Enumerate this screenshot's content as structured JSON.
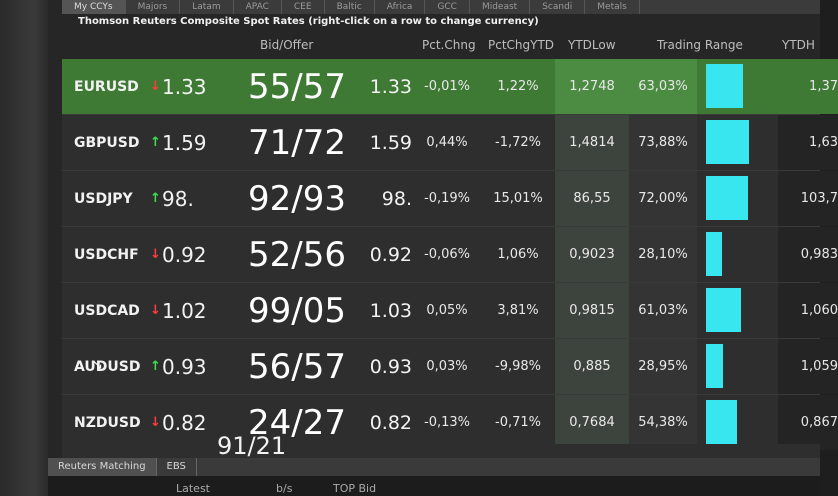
{
  "region_tabs": [
    "My CCYs",
    "Majors",
    "Latam",
    "APAC",
    "CEE",
    "Baltic",
    "Africa",
    "GCC",
    "Mideast",
    "Scandi",
    "Metals"
  ],
  "panel_title": "Thomson Reuters Composite Spot Rates (right-click on a row to change currency)",
  "headers": {
    "bid_offer": "Bid/Offer",
    "pct_chng": "Pct.Chng",
    "pct_chg_ytd": "PctChgYTD",
    "ytd_low": "YTDLow",
    "trading_range": "Trading Range",
    "ytd_high": "YTDH"
  },
  "rows": [
    {
      "ccy": "EURUSD",
      "dir": "down",
      "last": "1.33",
      "bidoffer": "55/57",
      "last2": "1.33",
      "pct": "-0,01%",
      "ytd": "1,22%",
      "ytdlow": "1,2748",
      "range": "63,03%",
      "range_value": 0.63,
      "ytdh": "1,37"
    },
    {
      "ccy": "GBPUSD",
      "dir": "up",
      "last": "1.59",
      "bidoffer": "71/72",
      "last2": "1.59",
      "pct": "0,44%",
      "ytd": "-1,72%",
      "ytdlow": "1,4814",
      "range": "73,88%",
      "range_value": 0.74,
      "ytdh": "1,63"
    },
    {
      "ccy": "USDJPY",
      "dir": "up",
      "last": "98.",
      "bidoffer": "92/93",
      "last2": "98.",
      "pct": "-0,19%",
      "ytd": "15,01%",
      "ytdlow": "86,55",
      "range": "72,00%",
      "range_value": 0.72,
      "ytdh": "103,7"
    },
    {
      "ccy": "USDCHF",
      "dir": "down",
      "last": "0.92",
      "bidoffer": "52/56",
      "last2": "0.92",
      "pct": "-0,06%",
      "ytd": "1,06%",
      "ytdlow": "0,9023",
      "range": "28,10%",
      "range_value": 0.28,
      "ytdh": "0,983"
    },
    {
      "ccy": "USDCAD",
      "dir": "down",
      "last": "1.02",
      "bidoffer": "99/05",
      "last2": "1.03",
      "pct": "0,05%",
      "ytd": "3,81%",
      "ytdlow": "0,9815",
      "range": "61,03%",
      "range_value": 0.61,
      "ytdh": "1,060"
    },
    {
      "ccy": "AUDUSD",
      "dir": "up",
      "last": "0.93",
      "bidoffer": "56/57",
      "last2": "0.93",
      "pct": "0,03%",
      "ytd": "-9,98%",
      "ytdlow": "0,885",
      "range": "28,95%",
      "range_value": 0.29,
      "ytdh": "1,059"
    },
    {
      "ccy": "NZDUSD",
      "dir": "down",
      "last": "0.82",
      "bidoffer": "24/27",
      "last2": "0.82",
      "pct": "-0,13%",
      "ytd": "-0,71%",
      "ytdlow": "0,7684",
      "range": "54,38%",
      "range_value": 0.54,
      "ytdh": "0,867"
    }
  ],
  "partial_row": {
    "bidoffer": "91/21"
  },
  "bottom_tabs": [
    "Reuters Matching",
    "EBS"
  ],
  "bottom_headers": [
    "Latest",
    "b/s",
    "TOP Bid"
  ],
  "colors": {
    "selected_row": "#3f7a35",
    "range_bar": "#37e6ee",
    "up": "#3ee04a",
    "down": "#ff3b3b"
  }
}
